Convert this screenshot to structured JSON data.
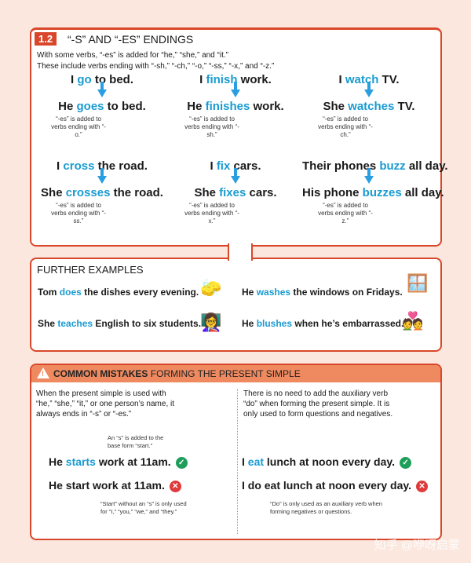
{
  "section": {
    "number": "1.2",
    "title": "“-S” AND “-ES” ENDINGS",
    "intro": [
      "With some verbs, “-es” is added for “he,” “she,” and “it.”",
      "These include verbs ending with “-sh,” “-ch,” “-o,” “-ss,” “-x,” and “-z.”"
    ],
    "examples": [
      {
        "base": [
          "I ",
          "go",
          " to bed."
        ],
        "third": [
          "He ",
          "goes",
          " to bed."
        ],
        "note": "“-es” is added to verbs ending with “-o.”"
      },
      {
        "base": [
          "I ",
          "finish",
          " work."
        ],
        "third": [
          "He ",
          "finishes",
          " work."
        ],
        "note": "“-es” is added to verbs ending with “-sh.”"
      },
      {
        "base": [
          "I ",
          "watch",
          " TV."
        ],
        "third": [
          "She ",
          "watches",
          " TV."
        ],
        "note": "“-es” is added to verbs ending with “-ch.”"
      },
      {
        "base": [
          "I ",
          "cross",
          " the road."
        ],
        "third": [
          "She ",
          "crosses",
          " the road."
        ],
        "note": "“-es” is added to verbs ending with “-ss.”"
      },
      {
        "base": [
          "I ",
          "fix",
          " cars."
        ],
        "third": [
          "She ",
          "fixes",
          " cars."
        ],
        "note": "“-es” is added to verbs ending with “-x.”"
      },
      {
        "base": [
          "Their phones ",
          "buzz",
          " all day."
        ],
        "third": [
          "His phone ",
          "buzzes",
          " all day."
        ],
        "note": "“-es” is added to verbs ending with “-z.”"
      }
    ]
  },
  "further": {
    "title": "FURTHER EXAMPLES",
    "items": [
      [
        "Tom ",
        "does",
        " the dishes every evening."
      ],
      [
        "He ",
        "washes",
        " the windows on Fridays."
      ],
      [
        "She ",
        "teaches",
        " English to six students."
      ],
      [
        "He ",
        "blushes",
        " when he’s embarrassed."
      ]
    ]
  },
  "mistakes": {
    "title_bold": "COMMON MISTAKES",
    "title_rest": " FORMING THE PRESENT SIMPLE",
    "left": {
      "text": "When the present simple is used with “he,” “she,” “it,” or one person’s name, it always ends in “-s” or “-es.”",
      "note_top": "An “s” is added to the base form “start.”",
      "correct": [
        "He ",
        "starts",
        " work at 11am."
      ],
      "wrong": "He start work at 11am.",
      "note_bottom": "“Start” without an “s” is only used for “I,” “you,” “we,” and “they.”"
    },
    "right": {
      "text": "There is no need to add the auxiliary verb “do” when forming the present simple. It is only used to form questions and negatives.",
      "correct": [
        "I ",
        "eat",
        " lunch at noon every day."
      ],
      "wrong": "I do eat lunch at noon every day.",
      "note_bottom": "“Do” is only used as an auxiliary verb when forming negatives or questions."
    }
  },
  "watermark": "知乎 @咿呀启蒙",
  "colors": {
    "accent": "#d9472b",
    "verb": "#1a9bd0",
    "header": "#ef8a60",
    "correct": "#1e9e5a",
    "wrong": "#e03a3a"
  }
}
